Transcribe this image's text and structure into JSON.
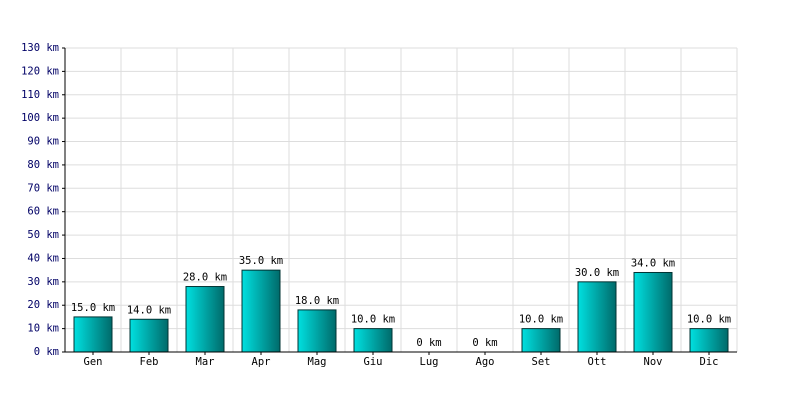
{
  "chart_data": {
    "type": "bar",
    "categories": [
      "Gen",
      "Feb",
      "Mar",
      "Apr",
      "Mag",
      "Giu",
      "Lug",
      "Ago",
      "Set",
      "Ott",
      "Nov",
      "Dic"
    ],
    "values": [
      15,
      14,
      28,
      35,
      18,
      10,
      0,
      0,
      10,
      30,
      34,
      10
    ],
    "value_labels": [
      "15.0 km",
      "14.0 km",
      "28.0 km",
      "35.0 km",
      "18.0 km",
      "10.0 km",
      "0 km",
      "0 km",
      "10.0 km",
      "30.0 km",
      "34.0 km",
      "10.0 km"
    ],
    "color": "#00e0e0",
    "ylim": [
      0,
      130
    ],
    "yticks": [
      {
        "value": 0,
        "label": "0 km"
      },
      {
        "value": 10,
        "label": "10 km"
      },
      {
        "value": 20,
        "label": "20 km"
      },
      {
        "value": 30,
        "label": "30 km"
      },
      {
        "value": 40,
        "label": "40 km"
      },
      {
        "value": 50,
        "label": "50 km"
      },
      {
        "value": 60,
        "label": "60 km"
      },
      {
        "value": 70,
        "label": "70 km"
      },
      {
        "value": 80,
        "label": "80 km"
      },
      {
        "value": 90,
        "label": "90 km"
      },
      {
        "value": 100,
        "label": "100 km"
      },
      {
        "value": 110,
        "label": "110 km"
      },
      {
        "value": 120,
        "label": "120 km"
      },
      {
        "value": 130,
        "label": "130 km"
      }
    ],
    "grid": true
  }
}
